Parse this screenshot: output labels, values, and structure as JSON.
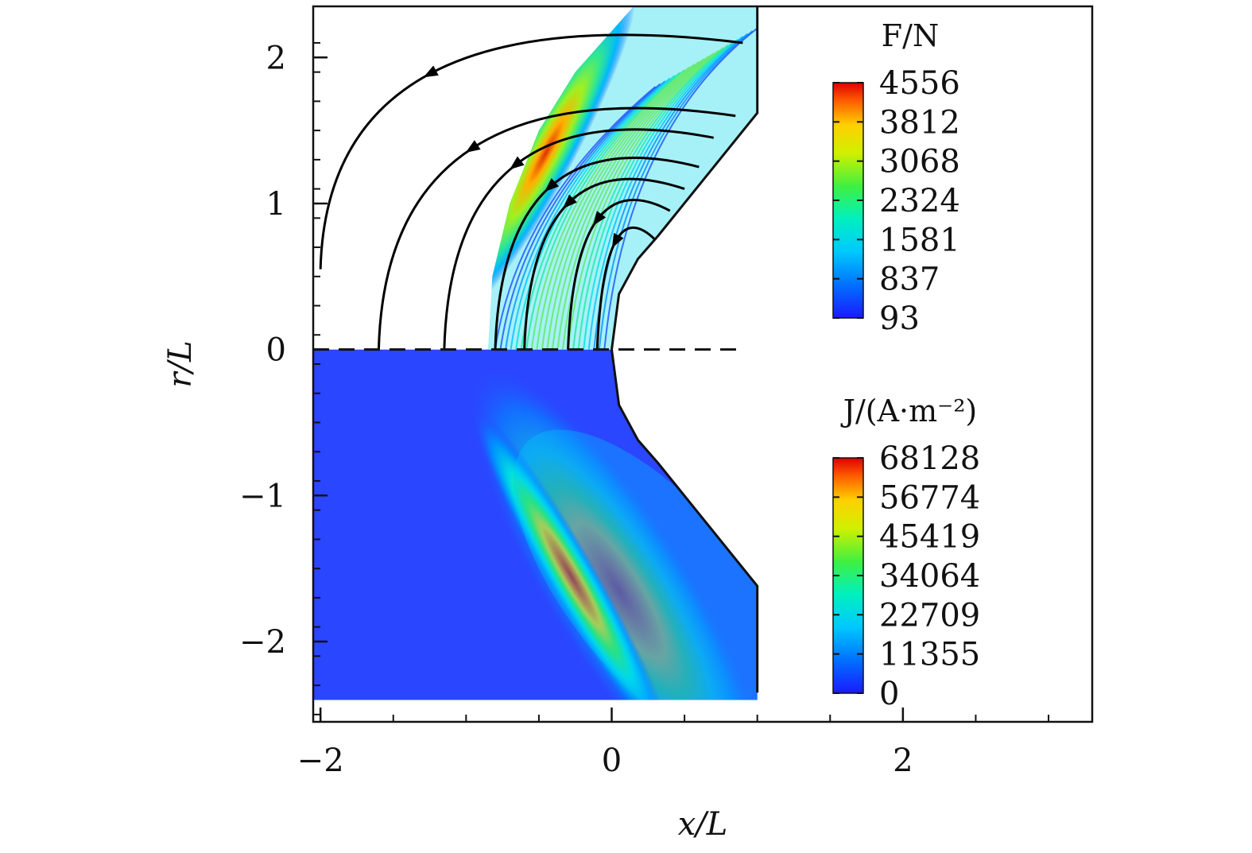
{
  "chart_data": {
    "type": "heatmap",
    "title": "",
    "xlabel": "x/L",
    "ylabel": "r/L",
    "xlim": [
      -2.05,
      3.3
    ],
    "ylim": [
      -2.55,
      2.35
    ],
    "x_ticks": [
      {
        "value": -2,
        "label": "−2"
      },
      {
        "value": 0,
        "label": "0"
      },
      {
        "value": 2,
        "label": "2"
      }
    ],
    "y_ticks": [
      {
        "value": 2,
        "label": "2"
      },
      {
        "value": 1,
        "label": "1"
      },
      {
        "value": 0,
        "label": "0"
      },
      {
        "value": -1,
        "label": "−1"
      },
      {
        "value": -2,
        "label": "−2"
      }
    ],
    "grid": false,
    "body": {
      "description_points": [
        [
          0,
          0
        ],
        [
          0.3,
          0.75
        ],
        [
          1.0,
          1.6
        ],
        [
          1.0,
          2.35
        ]
      ],
      "symmetry_axis": 0
    },
    "upper_field": {
      "name": "F/N",
      "colorbar_title": "F/N",
      "colorbar_ticks": [
        "4556",
        "3812",
        "3068",
        "2324",
        "1581",
        "837",
        "93"
      ],
      "min": 93,
      "max": 4556
    },
    "lower_field": {
      "name": "J/(A·m⁻²)",
      "colorbar_title": "J/(A·m⁻²)",
      "colorbar_ticks": [
        "68128",
        "56774",
        "45419",
        "34064",
        "22709",
        "11355",
        "0"
      ],
      "min": 0,
      "max": 68128
    },
    "streamlines": [
      {
        "start": [
          -2.0,
          0.55
        ],
        "end": [
          0.9,
          2.1
        ]
      },
      {
        "start": [
          -1.6,
          0.0
        ],
        "end": [
          0.85,
          1.6
        ]
      },
      {
        "start": [
          -1.15,
          0.0
        ],
        "end": [
          0.7,
          1.45
        ]
      },
      {
        "start": [
          -0.8,
          0.0
        ],
        "end": [
          0.6,
          1.25
        ]
      },
      {
        "start": [
          -0.6,
          0.0
        ],
        "end": [
          0.5,
          1.1
        ]
      },
      {
        "start": [
          -0.3,
          0.0
        ],
        "end": [
          0.4,
          0.95
        ]
      },
      {
        "start": [
          -0.1,
          0.0
        ],
        "end": [
          0.3,
          0.75
        ]
      }
    ],
    "colors": {
      "colormap": [
        "#1a1aff",
        "#0070ff",
        "#00c8ff",
        "#00f0c0",
        "#40f040",
        "#d0f000",
        "#ffd000",
        "#ff6000",
        "#e00000"
      ],
      "background": "#2a46ff"
    }
  }
}
